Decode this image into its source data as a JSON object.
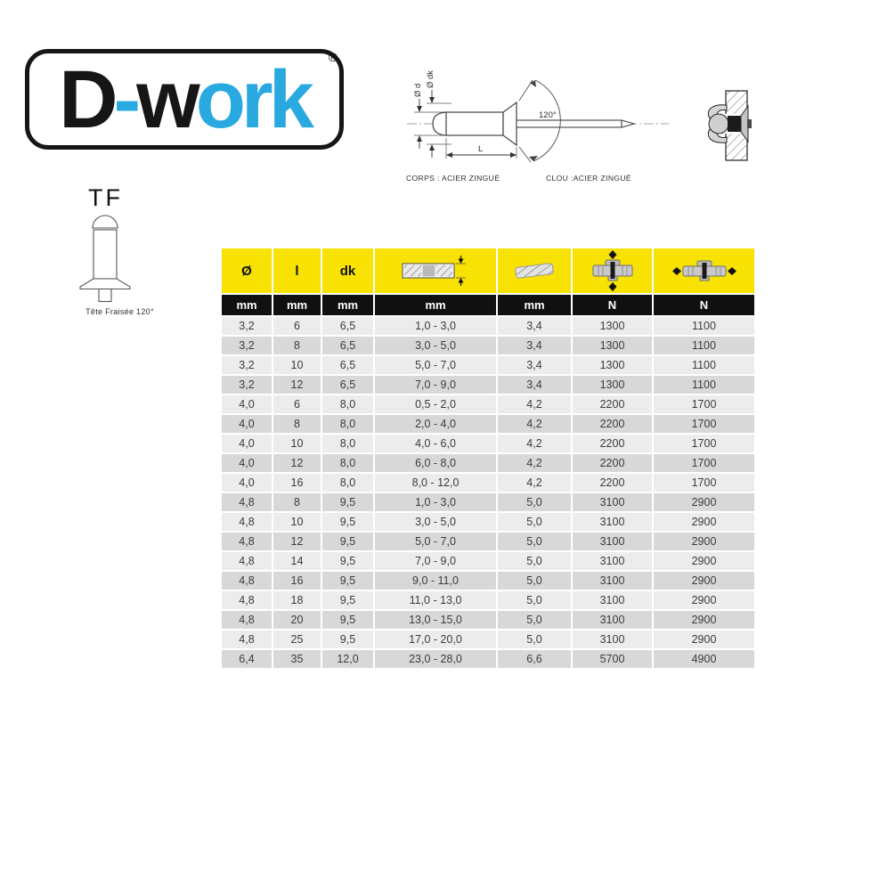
{
  "logo": {
    "parts": [
      "D",
      "-",
      "w",
      "ork"
    ],
    "registered": "®",
    "black": "#161616",
    "blue": "#29a9e0"
  },
  "diagram": {
    "label_d": "Ø d",
    "label_dk": "Ø dk",
    "label_angle": "120°",
    "label_length": "L",
    "corps_text": "CORPS : ACIER ZINGUÉ",
    "clou_text": "CLOU :ACIER ZINGUÉ"
  },
  "tf": {
    "title": "TF",
    "caption": "Tête Fraisée 120°"
  },
  "table": {
    "col_labels": [
      "Ø",
      "l",
      "dk"
    ],
    "header_icons": [
      "clamp-range-icon",
      "drill-bit-icon",
      "shear-strength-icon",
      "tensile-strength-icon"
    ],
    "units": [
      "mm",
      "mm",
      "mm",
      "mm",
      "mm",
      "N",
      "N"
    ],
    "rows": [
      [
        "3,2",
        "6",
        "6,5",
        "1,0 - 3,0",
        "3,4",
        "1300",
        "1100"
      ],
      [
        "3,2",
        "8",
        "6,5",
        "3,0 - 5,0",
        "3,4",
        "1300",
        "1100"
      ],
      [
        "3,2",
        "10",
        "6,5",
        "5,0 - 7,0",
        "3,4",
        "1300",
        "1100"
      ],
      [
        "3,2",
        "12",
        "6,5",
        "7,0 - 9,0",
        "3,4",
        "1300",
        "1100"
      ],
      [
        "4,0",
        "6",
        "8,0",
        "0,5 - 2,0",
        "4,2",
        "2200",
        "1700"
      ],
      [
        "4,0",
        "8",
        "8,0",
        "2,0 - 4,0",
        "4,2",
        "2200",
        "1700"
      ],
      [
        "4,0",
        "10",
        "8,0",
        "4,0 - 6,0",
        "4,2",
        "2200",
        "1700"
      ],
      [
        "4,0",
        "12",
        "8,0",
        "6,0 - 8,0",
        "4,2",
        "2200",
        "1700"
      ],
      [
        "4,0",
        "16",
        "8,0",
        "8,0 - 12,0",
        "4,2",
        "2200",
        "1700"
      ],
      [
        "4,8",
        "8",
        "9,5",
        "1,0 - 3,0",
        "5,0",
        "3100",
        "2900"
      ],
      [
        "4,8",
        "10",
        "9,5",
        "3,0 - 5,0",
        "5,0",
        "3100",
        "2900"
      ],
      [
        "4,8",
        "12",
        "9,5",
        "5,0 - 7,0",
        "5,0",
        "3100",
        "2900"
      ],
      [
        "4,8",
        "14",
        "9,5",
        "7,0 - 9,0",
        "5,0",
        "3100",
        "2900"
      ],
      [
        "4,8",
        "16",
        "9,5",
        "9,0 - 11,0",
        "5,0",
        "3100",
        "2900"
      ],
      [
        "4,8",
        "18",
        "9,5",
        "11,0 - 13,0",
        "5,0",
        "3100",
        "2900"
      ],
      [
        "4,8",
        "20",
        "9,5",
        "13,0 - 15,0",
        "5,0",
        "3100",
        "2900"
      ],
      [
        "4,8",
        "25",
        "9,5",
        "17,0 - 20,0",
        "5,0",
        "3100",
        "2900"
      ],
      [
        "6,4",
        "35",
        "12,0",
        "23,0 - 28,0",
        "6,6",
        "5700",
        "4900"
      ]
    ],
    "colors": {
      "header_yellow": "#f8e203",
      "units_black": "#101010",
      "row_light": "#ececec",
      "row_dark": "#d8d8d8"
    }
  }
}
